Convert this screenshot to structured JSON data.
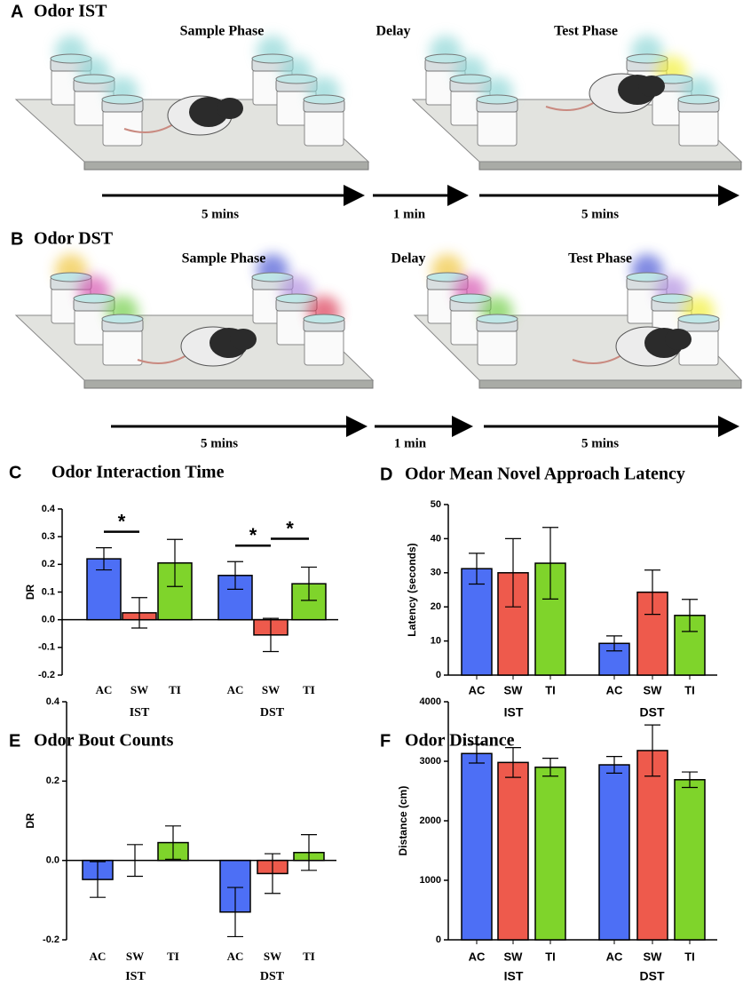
{
  "schematics": [
    {
      "label": "A",
      "title": "Odor IST",
      "phases": [
        "Sample Phase",
        "Delay",
        "Test Phase"
      ],
      "durations": [
        "5 mins",
        "1 min",
        "5 mins"
      ]
    },
    {
      "label": "B",
      "title": "Odor DST",
      "phases": [
        "Sample Phase",
        "Delay",
        "Test Phase"
      ],
      "durations": [
        "5 mins",
        "1 min",
        "5 mins"
      ]
    }
  ],
  "chart_data": [
    {
      "type": "bar",
      "label": "C",
      "title": "Odor Interaction Time",
      "ylabel": "DR",
      "categories": [
        "AC",
        "SW",
        "TI",
        "AC",
        "SW",
        "TI"
      ],
      "groups": [
        "IST",
        "DST"
      ],
      "values": [
        0.22,
        0.025,
        0.205,
        0.16,
        -0.055,
        0.13
      ],
      "errors": [
        0.04,
        0.055,
        0.085,
        0.05,
        0.06,
        0.06
      ],
      "colors": [
        "#4d6ff5",
        "#ee5a4c",
        "#7fd42b",
        "#4d6ff5",
        "#ee5a4c",
        "#7fd42b"
      ],
      "ylim": [
        -0.2,
        0.4
      ],
      "yticks": [
        -0.2,
        -0.1,
        {
          "value": 0,
          "label": "0.0"
        },
        0.1,
        0.2,
        0.3,
        0.4
      ],
      "annotations": [
        {
          "text": "*",
          "from": 0,
          "to": 1
        },
        {
          "text": "*",
          "from": 3,
          "to": 4
        },
        {
          "text": "*",
          "from": 4,
          "to": 5
        }
      ]
    },
    {
      "type": "bar",
      "label": "D",
      "title": "Odor Mean Novel Approach Latency",
      "ylabel": "Latency (seconds)",
      "categories": [
        "AC",
        "SW",
        "TI",
        "AC",
        "SW",
        "TI"
      ],
      "groups": [
        "IST",
        "DST"
      ],
      "values": [
        31.2,
        30,
        32.8,
        9.3,
        24.3,
        17.5
      ],
      "errors": [
        4.5,
        10,
        10.5,
        2.2,
        6.5,
        4.7
      ],
      "colors": [
        "#4d6ff5",
        "#ee5a4c",
        "#7fd42b",
        "#4d6ff5",
        "#ee5a4c",
        "#7fd42b"
      ],
      "ylim": [
        0,
        50
      ],
      "yticks": [
        0,
        10,
        20,
        30,
        40,
        50
      ]
    },
    {
      "type": "bar",
      "label": "E",
      "title": "Odor Bout Counts",
      "ylabel": "DR",
      "categories": [
        "AC",
        "SW",
        "TI",
        "AC",
        "SW",
        "TI"
      ],
      "groups": [
        "IST",
        "DST"
      ],
      "values": [
        -0.048,
        0,
        0.045,
        -0.13,
        -0.033,
        0.02
      ],
      "errors": [
        0.045,
        0.04,
        0.042,
        0.062,
        0.05,
        0.045
      ],
      "colors": [
        "#4d6ff5",
        "#ee5a4c",
        "#7fd42b",
        "#4d6ff5",
        "#ee5a4c",
        "#7fd42b"
      ],
      "ylim": [
        -0.2,
        0.4
      ],
      "yticks": [
        -0.2,
        {
          "value": 0,
          "label": "0.0"
        },
        0.2,
        0.4
      ]
    },
    {
      "type": "bar",
      "label": "F",
      "title": "Odor Distance",
      "ylabel": "Distance (cm)",
      "categories": [
        "AC",
        "SW",
        "TI",
        "AC",
        "SW",
        "TI"
      ],
      "groups": [
        "IST",
        "DST"
      ],
      "values": [
        3130,
        2980,
        2900,
        2940,
        3180,
        2690
      ],
      "errors": [
        160,
        250,
        150,
        140,
        430,
        130
      ],
      "colors": [
        "#4d6ff5",
        "#ee5a4c",
        "#7fd42b",
        "#4d6ff5",
        "#ee5a4c",
        "#7fd42b"
      ],
      "ylim": [
        0,
        4000
      ],
      "yticks": [
        0,
        1000,
        2000,
        3000,
        4000
      ]
    }
  ]
}
